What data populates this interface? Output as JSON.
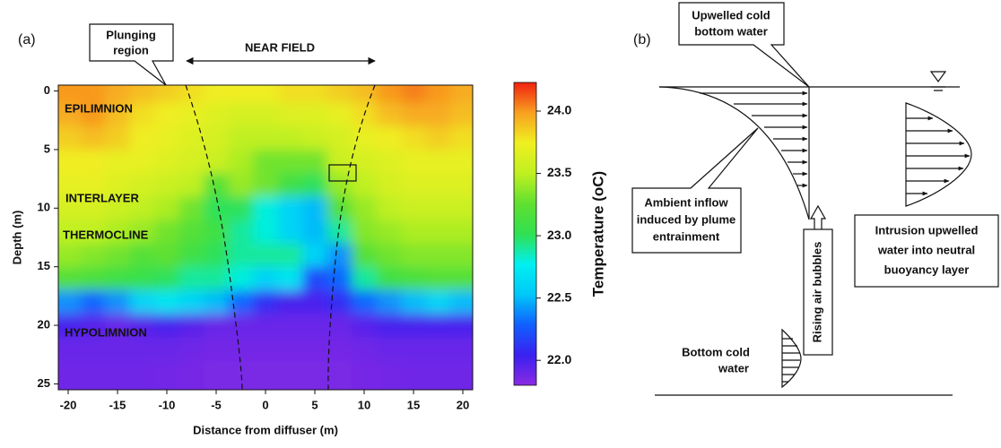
{
  "chart_data": {
    "type": "contour",
    "panel_label": "(a)",
    "xlabel": "Distance from diffuser (m)",
    "ylabel": "Depth (m)",
    "xlim": [
      -21,
      21
    ],
    "xticks": [
      -20,
      -15,
      -10,
      -5,
      0,
      5,
      10,
      15,
      20
    ],
    "ylim": [
      -0.5,
      25.5
    ],
    "yticks": [
      0,
      5,
      10,
      15,
      20,
      25
    ],
    "y_inverted": true,
    "colorbar_label": "Temperature (oC)",
    "clim": [
      21.8,
      24.23
    ],
    "cticks": [
      {
        "value": 22,
        "label": "22.0"
      },
      {
        "value": 22.5,
        "label": "22.5"
      },
      {
        "value": 23,
        "label": "23.0"
      },
      {
        "value": 23.5,
        "label": "23.5"
      },
      {
        "value": 24,
        "label": "24.0"
      }
    ],
    "colors": [
      "#8a2be2",
      "#3a20f0",
      "#1060ff",
      "#00c8f8",
      "#00f0f0",
      "#30e050",
      "#60e030",
      "#c0f020",
      "#f0f020",
      "#f8a020",
      "#f02010"
    ],
    "x": [
      -20,
      -17.5,
      -15,
      -12.5,
      -10,
      -7.5,
      -5,
      -2.5,
      0,
      2.5,
      5,
      7.5,
      10,
      12.5,
      15,
      17.5,
      20
    ],
    "depth": [
      0,
      2,
      4,
      6,
      8,
      10,
      12,
      14,
      16,
      18,
      20,
      22,
      24
    ],
    "z": [
      [
        24.0,
        24.0,
        23.95,
        23.9,
        23.85,
        23.8,
        23.75,
        23.75,
        23.75,
        23.8,
        23.8,
        23.85,
        23.9,
        24.0,
        24.05,
        24.0,
        23.95
      ],
      [
        23.95,
        24.0,
        23.9,
        23.8,
        23.75,
        23.7,
        23.65,
        23.6,
        23.6,
        23.65,
        23.65,
        23.7,
        23.8,
        23.9,
        23.95,
        23.95,
        23.9
      ],
      [
        23.85,
        23.9,
        23.85,
        23.75,
        23.7,
        23.65,
        23.6,
        23.5,
        23.5,
        23.5,
        23.55,
        23.6,
        23.7,
        23.75,
        23.8,
        23.85,
        23.8
      ],
      [
        23.75,
        23.75,
        23.7,
        23.7,
        23.65,
        23.6,
        23.55,
        23.45,
        23.3,
        23.3,
        23.3,
        23.55,
        23.6,
        23.65,
        23.7,
        23.7,
        23.7
      ],
      [
        23.7,
        23.7,
        23.65,
        23.6,
        23.55,
        23.5,
        23.2,
        23.4,
        23.3,
        23.1,
        23.0,
        23.4,
        23.5,
        23.6,
        23.65,
        23.65,
        23.65
      ],
      [
        23.6,
        23.6,
        23.55,
        23.5,
        23.45,
        23.3,
        23.0,
        23.0,
        22.8,
        22.6,
        22.5,
        23.2,
        23.4,
        23.5,
        23.55,
        23.55,
        23.55
      ],
      [
        23.5,
        23.5,
        23.45,
        23.4,
        23.3,
        23.2,
        23.1,
        22.9,
        22.8,
        22.6,
        22.5,
        22.9,
        23.35,
        23.4,
        23.45,
        23.45,
        23.45
      ],
      [
        23.4,
        23.35,
        23.3,
        23.2,
        23.25,
        23.1,
        23.0,
        22.9,
        22.9,
        22.9,
        22.6,
        22.4,
        23.2,
        23.3,
        23.35,
        23.35,
        23.35
      ],
      [
        23.2,
        23.15,
        23.1,
        23.05,
        23.0,
        22.9,
        22.9,
        22.8,
        22.6,
        22.7,
        22.2,
        22.3,
        22.9,
        23.1,
        23.15,
        23.2,
        23.2
      ],
      [
        22.4,
        22.3,
        22.4,
        22.6,
        22.7,
        22.6,
        22.5,
        22.3,
        22.1,
        22.0,
        22.0,
        22.1,
        22.3,
        22.4,
        22.5,
        22.6,
        22.5
      ],
      [
        22.0,
        21.95,
        21.9,
        21.95,
        22.0,
        21.95,
        21.9,
        21.9,
        21.9,
        21.9,
        21.9,
        21.9,
        21.95,
        22.0,
        22.0,
        22.0,
        22.0
      ],
      [
        21.9,
        21.9,
        21.9,
        21.9,
        21.9,
        21.88,
        21.87,
        21.87,
        21.87,
        21.87,
        21.87,
        21.87,
        21.88,
        21.9,
        21.9,
        21.9,
        21.9
      ],
      [
        21.88,
        21.88,
        21.88,
        21.88,
        21.87,
        21.86,
        21.85,
        21.85,
        21.85,
        21.85,
        21.85,
        21.85,
        21.86,
        21.87,
        21.88,
        21.88,
        21.88
      ]
    ],
    "annotations": {
      "plunging": [
        "Plunging",
        "region"
      ],
      "near_field": "NEAR FIELD",
      "layers": [
        "EPILIMNION",
        "INTERLAYER",
        "THERMOCLINE",
        "HYPOLIMNION"
      ]
    }
  },
  "diagram": {
    "panel_label": "(b)",
    "upwelled": [
      "Upwelled cold",
      "bottom water"
    ],
    "ambient": [
      "Ambient inflow",
      "induced by plume",
      "entrainment"
    ],
    "bubbles": "Rising air bubbles",
    "intrusion": [
      "Intrusion upwelled",
      "water into neutral",
      "buoyancy layer"
    ],
    "bottom": [
      "Bottom cold",
      "water"
    ]
  }
}
